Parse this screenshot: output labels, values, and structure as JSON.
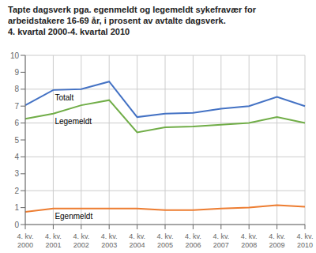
{
  "chart_data": {
    "type": "line",
    "title": "Tapte dagsverk pga. egenmeldt og legemeldt sykefravær for arbeidstakere 16-69 år, i prosent av avtalte dagsverk.",
    "subtitle": "4. kvartal 2000-4. kvartal 2010",
    "categories": [
      "4. kv.\n2000",
      "4. kv.\n2001",
      "4. kv.\n2002",
      "4. kv.\n2003",
      "4. kv.\n2004",
      "4. kv.\n2005",
      "4. kv.\n2006",
      "4. kv.\n2007",
      "4. kv.\n2008",
      "4. kv.\n2009",
      "4. kv.\n2010"
    ],
    "series": [
      {
        "name": "Totalt",
        "color": "#4472c4",
        "values": [
          7.05,
          7.95,
          8.0,
          8.45,
          6.35,
          6.55,
          6.6,
          6.85,
          7.0,
          7.55,
          7.0
        ]
      },
      {
        "name": "Legemeldt",
        "color": "#70ad47",
        "values": [
          6.25,
          6.55,
          7.05,
          7.35,
          5.45,
          5.75,
          5.8,
          5.9,
          6.0,
          6.35,
          6.0
        ]
      },
      {
        "name": "Egenmeldt",
        "color": "#ed7d31",
        "values": [
          0.75,
          0.95,
          0.95,
          0.95,
          0.95,
          0.85,
          0.85,
          0.95,
          1.0,
          1.15,
          1.05
        ]
      }
    ],
    "ylim": [
      0,
      10
    ],
    "yticks": [
      0,
      1,
      2,
      3,
      4,
      5,
      6,
      7,
      8,
      9,
      10
    ],
    "grid": true
  }
}
